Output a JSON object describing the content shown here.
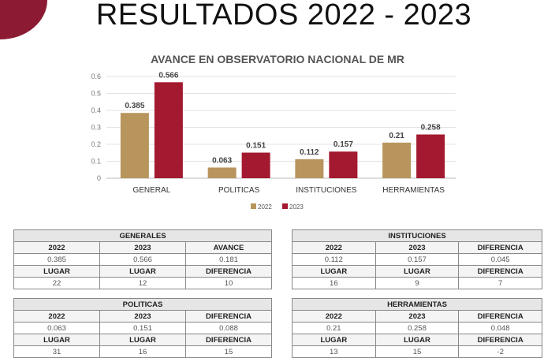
{
  "title": "RESULTADOS 2022 - 2023",
  "colors": {
    "y2022": "#b8955c",
    "y2023": "#a3192f",
    "accent": "#8b1a32"
  },
  "chart_data": {
    "type": "bar",
    "title": "AVANCE EN OBSERVATORIO NACIONAL DE MR",
    "categories": [
      "GENERAL",
      "POLITICAS",
      "INSTITUCIONES",
      "HERRAMIENTAS"
    ],
    "series": [
      {
        "name": "2022",
        "values": [
          0.385,
          0.063,
          0.112,
          0.21
        ]
      },
      {
        "name": "2023",
        "values": [
          0.566,
          0.151,
          0.157,
          0.258
        ]
      }
    ],
    "data_labels": [
      [
        "0.385",
        "0.063",
        "0.112",
        "0.21"
      ],
      [
        "0.566",
        "0.151",
        "0.157",
        "0.258"
      ]
    ],
    "yticks": [
      "0",
      "0.1",
      "0.2",
      "0.3",
      "0.4",
      "0.5",
      "0.6"
    ],
    "ylim": [
      0,
      0.6
    ],
    "grid": true,
    "legend": "bottom"
  },
  "tables": [
    {
      "title": "GENERALES",
      "rows": [
        [
          "2022",
          "2023",
          "AVANCE"
        ],
        [
          "0.385",
          "0.566",
          "0.181"
        ],
        [
          "LUGAR",
          "LUGAR",
          "DIFERENCIA"
        ],
        [
          "22",
          "12",
          "10"
        ]
      ]
    },
    {
      "title": "INSTITUCIONES",
      "rows": [
        [
          "2022",
          "2023",
          "DIFERENCIA"
        ],
        [
          "0.112",
          "0.157",
          "0.045"
        ],
        [
          "LUGAR",
          "LUGAR",
          "DIFERENCIA"
        ],
        [
          "16",
          "9",
          "7"
        ]
      ]
    },
    {
      "title": "POLITICAS",
      "rows": [
        [
          "2022",
          "2023",
          "DIFERENCIA"
        ],
        [
          "0.063",
          "0.151",
          "0.088"
        ],
        [
          "LUGAR",
          "LUGAR",
          "DIFERENCIA"
        ],
        [
          "31",
          "16",
          "15"
        ]
      ]
    },
    {
      "title": "HERRAMIENTAS",
      "rows": [
        [
          "2022",
          "2023",
          "DIFERENCIA"
        ],
        [
          "0.21",
          "0.258",
          "0.048"
        ],
        [
          "LUGAR",
          "LUGAR",
          "DIFERENCIA"
        ],
        [
          "13",
          "15",
          "-2"
        ]
      ]
    }
  ]
}
